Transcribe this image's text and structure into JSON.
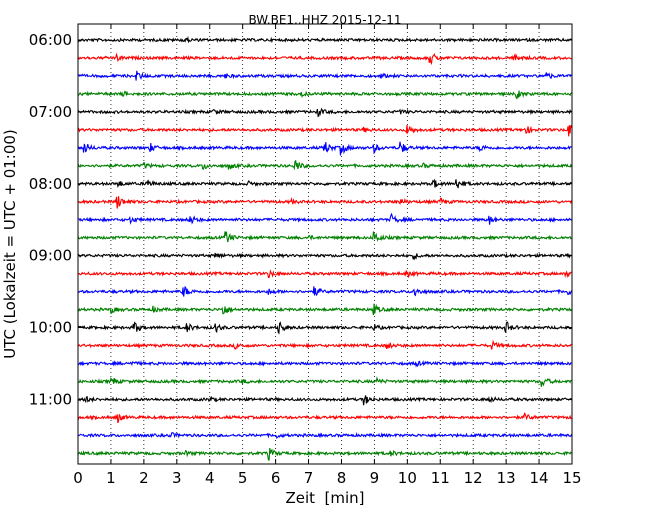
{
  "chart_data": {
    "type": "line",
    "title": "BW.BE1..HHZ 2015-12-11",
    "xlabel": "Zeit  [min]",
    "ylabel": "UTC (Lokalzeit = UTC + 01:00)",
    "xlim": [
      0,
      15
    ],
    "xticks": [
      "0",
      "1",
      "2",
      "3",
      "4",
      "5",
      "6",
      "7",
      "8",
      "9",
      "10",
      "11",
      "12",
      "13",
      "14",
      "15"
    ],
    "yticks": [
      "06:00",
      "07:00",
      "08:00",
      "09:00",
      "10:00",
      "11:00"
    ],
    "grid": "x-dotted",
    "colors": [
      "#000000",
      "#ff0000",
      "#0000ff",
      "#008000"
    ],
    "rows": [
      {
        "start": "06:00",
        "events": [
          [
            3.2,
            0.3
          ]
        ]
      },
      {
        "start": "06:15",
        "events": [
          [
            10.7,
            0.8
          ],
          [
            1.2,
            0.3
          ],
          [
            13.3,
            0.35
          ]
        ]
      },
      {
        "start": "06:30",
        "events": [
          [
            1.8,
            0.5
          ],
          [
            14.2,
            0.5
          ],
          [
            4.5,
            0.2
          ],
          [
            9.2,
            0.2
          ]
        ]
      },
      {
        "start": "06:45",
        "events": [
          [
            13.3,
            0.6
          ],
          [
            1.4,
            0.2
          ],
          [
            6.8,
            0.2
          ]
        ]
      },
      {
        "start": "07:00",
        "events": [
          [
            7.3,
            0.5
          ],
          [
            4.1,
            0.3
          ],
          [
            9.8,
            0.2
          ]
        ]
      },
      {
        "start": "07:15",
        "events": [
          [
            10.0,
            0.7
          ],
          [
            14.9,
            0.8
          ],
          [
            13.6,
            0.5
          ],
          [
            8.7,
            0.2
          ]
        ]
      },
      {
        "start": "07:30",
        "events": [
          [
            0.2,
            0.7
          ],
          [
            2.2,
            0.5
          ],
          [
            7.5,
            0.8
          ],
          [
            8.0,
            0.8
          ],
          [
            9.0,
            0.5
          ],
          [
            9.8,
            0.8
          ],
          [
            12.2,
            0.4
          ]
        ]
      },
      {
        "start": "07:45",
        "events": [
          [
            6.6,
            0.8
          ],
          [
            3.8,
            0.4
          ],
          [
            4.6,
            0.4
          ],
          [
            2.0,
            0.3
          ],
          [
            10.5,
            0.2
          ]
        ]
      },
      {
        "start": "08:00",
        "events": [
          [
            2.1,
            0.5
          ],
          [
            11.5,
            0.8
          ],
          [
            10.8,
            0.5
          ],
          [
            1.2,
            0.4
          ],
          [
            5.2,
            0.2
          ]
        ]
      },
      {
        "start": "08:15",
        "events": [
          [
            1.2,
            0.9
          ],
          [
            9.8,
            0.4
          ],
          [
            11.0,
            0.4
          ],
          [
            6.5,
            0.2
          ]
        ]
      },
      {
        "start": "08:30",
        "events": [
          [
            3.4,
            0.6
          ],
          [
            9.5,
            0.7
          ],
          [
            12.5,
            0.5
          ],
          [
            1.6,
            0.3
          ]
        ]
      },
      {
        "start": "08:45",
        "events": [
          [
            4.5,
            0.8
          ],
          [
            9.0,
            0.8
          ],
          [
            7.0,
            0.2
          ]
        ]
      },
      {
        "start": "09:00",
        "events": [
          [
            4.2,
            0.3
          ],
          [
            10.2,
            0.3
          ]
        ]
      },
      {
        "start": "09:15",
        "events": [
          [
            5.8,
            0.4
          ],
          [
            10.0,
            0.3
          ],
          [
            14.8,
            0.3
          ]
        ]
      },
      {
        "start": "09:30",
        "events": [
          [
            3.2,
            0.8
          ],
          [
            7.2,
            0.6
          ],
          [
            10.2,
            0.7
          ],
          [
            14.9,
            0.4
          ],
          [
            5.8,
            0.3
          ]
        ]
      },
      {
        "start": "09:45",
        "events": [
          [
            4.4,
            0.9
          ],
          [
            9.0,
            0.6
          ],
          [
            1.0,
            0.4
          ],
          [
            2.3,
            0.3
          ]
        ]
      },
      {
        "start": "10:00",
        "events": [
          [
            1.7,
            0.8
          ],
          [
            3.3,
            0.6
          ],
          [
            4.2,
            0.5
          ],
          [
            6.1,
            0.8
          ],
          [
            13.0,
            0.7
          ],
          [
            9.0,
            0.3
          ]
        ]
      },
      {
        "start": "10:15",
        "events": [
          [
            9.4,
            0.4
          ],
          [
            12.6,
            0.4
          ],
          [
            4.8,
            0.3
          ]
        ]
      },
      {
        "start": "10:30",
        "events": [
          [
            1.6,
            0.2
          ],
          [
            10.3,
            0.2
          ]
        ]
      },
      {
        "start": "10:45",
        "events": [
          [
            14.1,
            0.7
          ],
          [
            1.0,
            0.6
          ],
          [
            5.0,
            0.2
          ],
          [
            9.1,
            0.3
          ]
        ]
      },
      {
        "start": "11:00",
        "events": [
          [
            8.7,
            0.6
          ],
          [
            0.2,
            0.4
          ],
          [
            4.0,
            0.2
          ],
          [
            12.5,
            0.3
          ]
        ]
      },
      {
        "start": "11:15",
        "events": [
          [
            1.2,
            0.6
          ],
          [
            13.6,
            0.4
          ]
        ]
      },
      {
        "start": "11:30",
        "events": [
          [
            2.8,
            0.3
          ],
          [
            6.0,
            0.3
          ]
        ]
      },
      {
        "start": "11:45",
        "events": [
          [
            5.8,
            0.7
          ],
          [
            9.5,
            0.3
          ],
          [
            3.3,
            0.2
          ]
        ]
      }
    ]
  }
}
